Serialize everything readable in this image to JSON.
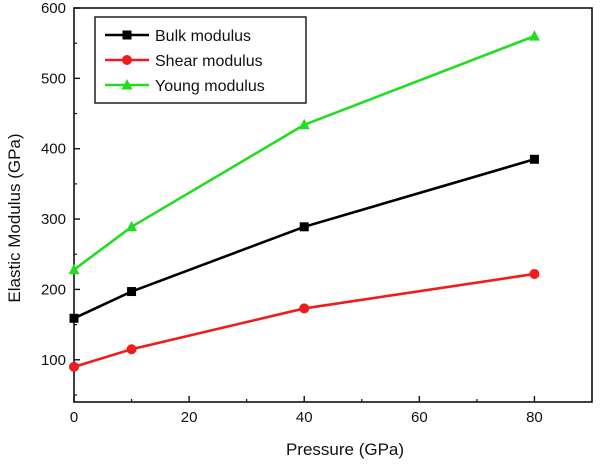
{
  "chart_data": {
    "type": "line",
    "title": "",
    "xlabel": "Pressure (GPa)",
    "ylabel": "Elastic Modulus (GPa)",
    "x": [
      0,
      10,
      40,
      80
    ],
    "xlim": [
      0,
      90
    ],
    "ylim": [
      40,
      600
    ],
    "xticks": [
      0,
      20,
      40,
      60,
      80
    ],
    "yticks": [
      100,
      200,
      300,
      400,
      500,
      600
    ],
    "grid": false,
    "legend_position": "top-left",
    "series": [
      {
        "name": "Bulk modulus",
        "values": [
          159,
          197,
          289,
          385
        ],
        "color": "#000000",
        "marker": "square"
      },
      {
        "name": "Shear modulus",
        "values": [
          90,
          115,
          173,
          222
        ],
        "color": "#ee1c1c",
        "marker": "circle"
      },
      {
        "name": "Young modulus",
        "values": [
          228,
          289,
          434,
          560
        ],
        "color": "#22dd22",
        "marker": "triangle"
      }
    ]
  }
}
